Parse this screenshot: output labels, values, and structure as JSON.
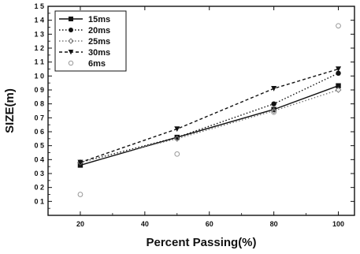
{
  "chart_data": {
    "type": "line",
    "xlabel": "Percent Passing(%)",
    "ylabel": "SIZE(m)",
    "x": [
      20,
      50,
      80,
      100
    ],
    "xlim": [
      10,
      105
    ],
    "ylim": [
      0,
      1.5
    ],
    "xticks": [
      20,
      40,
      60,
      80,
      100
    ],
    "yticks": [
      0.1,
      0.2,
      0.3,
      0.4,
      0.5,
      0.6,
      0.7,
      0.8,
      0.9,
      1.0,
      1.1,
      1.2,
      1.3,
      1.4,
      1.5
    ],
    "xtick_labels": [
      "20",
      "40",
      "60",
      "80",
      "100"
    ],
    "ytick_labels": [
      "0 1",
      "0 2",
      "0 3",
      "0 4",
      "0 5",
      "0 6",
      "0 7",
      "0 8",
      "0 9",
      "1 0",
      "1 1",
      "1 2",
      "1 3",
      "1 4",
      "1 5"
    ],
    "legend_position": "top-left",
    "grid": false,
    "series": [
      {
        "name": "15ms",
        "values": [
          0.36,
          0.56,
          0.76,
          0.93
        ],
        "marker": "square",
        "dash": "solid",
        "color": "#111111",
        "show_line": true
      },
      {
        "name": "20ms",
        "values": [
          0.38,
          0.56,
          0.8,
          1.02
        ],
        "marker": "circle",
        "dash": "dotted",
        "color": "#111111",
        "show_line": true
      },
      {
        "name": "25ms",
        "values": [
          0.38,
          0.55,
          0.75,
          0.9
        ],
        "marker": "diamond",
        "dash": "dotted",
        "color": "#777777",
        "show_line": true
      },
      {
        "name": "30ms",
        "values": [
          0.38,
          0.62,
          0.91,
          1.05
        ],
        "marker": "triangle-down",
        "dash": "dashed",
        "color": "#111111",
        "show_line": true
      },
      {
        "name": "6ms",
        "values": [
          0.15,
          0.44,
          0.74,
          1.36
        ],
        "marker": "circle-open",
        "dash": "none",
        "color": "#999999",
        "show_line": false
      }
    ]
  }
}
